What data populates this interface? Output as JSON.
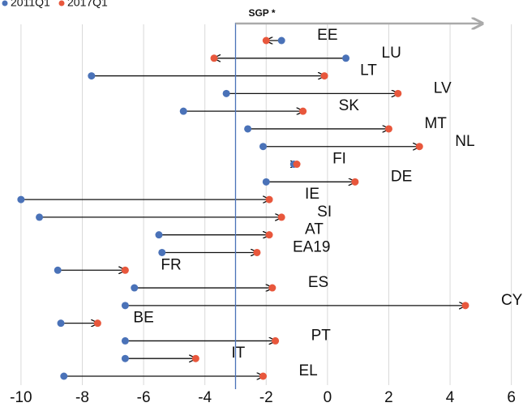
{
  "chart_data": {
    "type": "arrow-dumbbell",
    "categories": [
      "EE",
      "LU",
      "LT",
      "LV",
      "SK",
      "MT",
      "NL",
      "FI",
      "DE",
      "IE",
      "SI",
      "AT",
      "EA19",
      "FR",
      "ES",
      "CY",
      "BE",
      "PT",
      "IT",
      "EL"
    ],
    "series": [
      {
        "name": "2011Q1",
        "color": "#4a72b8",
        "values": [
          -1.5,
          0.6,
          -7.7,
          -3.3,
          -4.7,
          -2.6,
          -2.1,
          -1.1,
          -2.0,
          -10.0,
          -9.4,
          -5.5,
          -5.4,
          -8.8,
          -6.3,
          -6.6,
          -8.7,
          -6.6,
          -6.6,
          -8.6
        ]
      },
      {
        "name": "2017Q1",
        "color": "#e8573c",
        "values": [
          -2.0,
          -3.7,
          -0.1,
          2.3,
          -0.8,
          2.0,
          3.0,
          -1.0,
          0.9,
          -1.9,
          -1.5,
          -1.9,
          -2.3,
          -6.6,
          -1.8,
          4.5,
          -7.5,
          -1.7,
          -4.3,
          -2.1
        ]
      }
    ],
    "reference_line": {
      "value": -3,
      "label": "SGP *",
      "color": "#4a72b8"
    },
    "xlim": [
      -10.5,
      6.3
    ],
    "xticks": [
      -10,
      -8,
      -6,
      -4,
      -2,
      0,
      2,
      4,
      6
    ],
    "grid": true
  }
}
